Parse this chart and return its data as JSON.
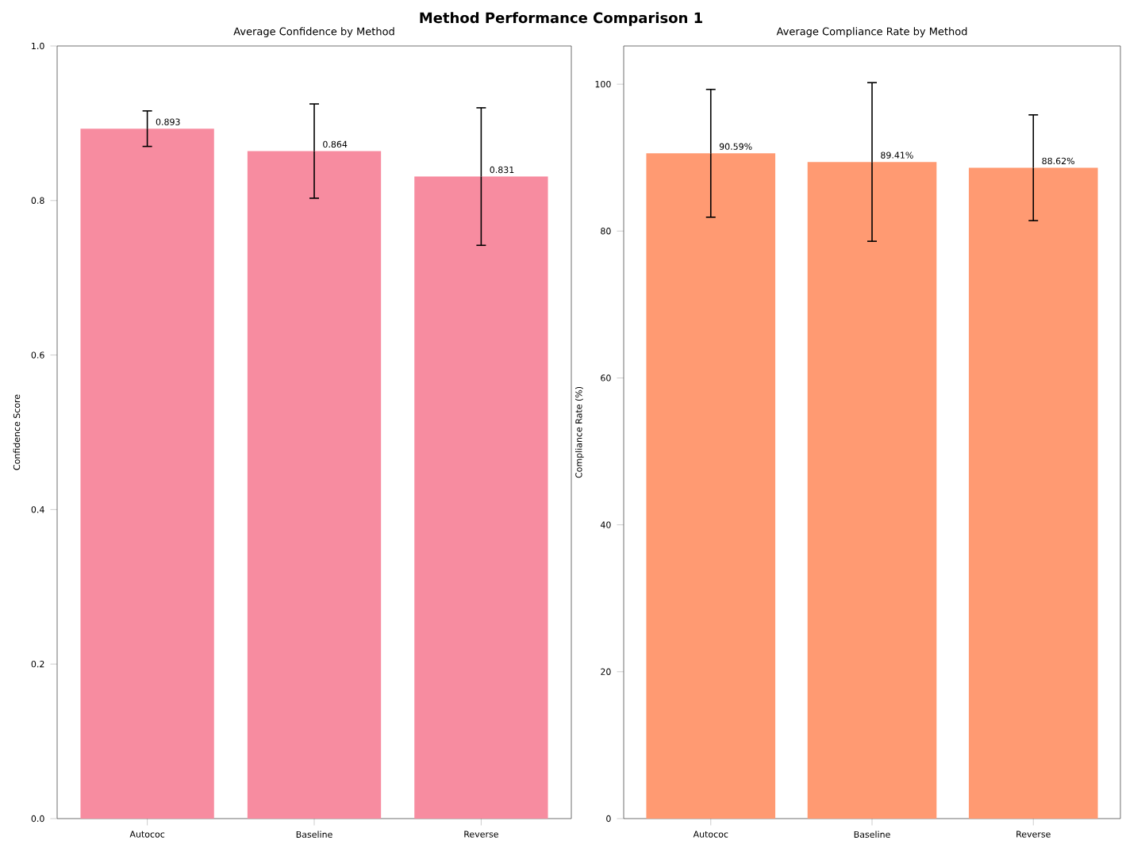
{
  "chart_data": [
    {
      "type": "bar",
      "title": "Average Confidence by Method",
      "ylabel": "Confidence Score",
      "annotations": [
        "Method Performance Comparison 1"
      ],
      "categories": [
        "Autococ",
        "Baseline",
        "Reverse"
      ],
      "values": [
        0.893,
        0.864,
        0.831
      ],
      "errors": [
        0.023,
        0.061,
        0.089
      ],
      "value_labels": [
        "0.893",
        "0.864",
        "0.831"
      ],
      "color": "#f78ca0",
      "ylim": [
        0,
        1
      ],
      "yticks": [
        {
          "value": 0,
          "label": "0.0"
        },
        0.2,
        0.4,
        0.6,
        0.8,
        {
          "value": 1,
          "label": "1.0"
        }
      ]
    },
    {
      "type": "bar",
      "title": "Average Compliance Rate by Method",
      "ylabel": "Compliance Rate (%)",
      "categories": [
        "Autococ",
        "Baseline",
        "Reverse"
      ],
      "values": [
        90.59,
        89.41,
        88.62
      ],
      "errors": [
        8.7,
        10.8,
        7.2
      ],
      "value_labels": [
        "90.59%",
        "89.41%",
        "88.62%"
      ],
      "color": "#ff9a72",
      "ylim": [
        0,
        105.2
      ],
      "yticks": [
        0,
        20,
        40,
        60,
        80,
        100
      ]
    }
  ]
}
